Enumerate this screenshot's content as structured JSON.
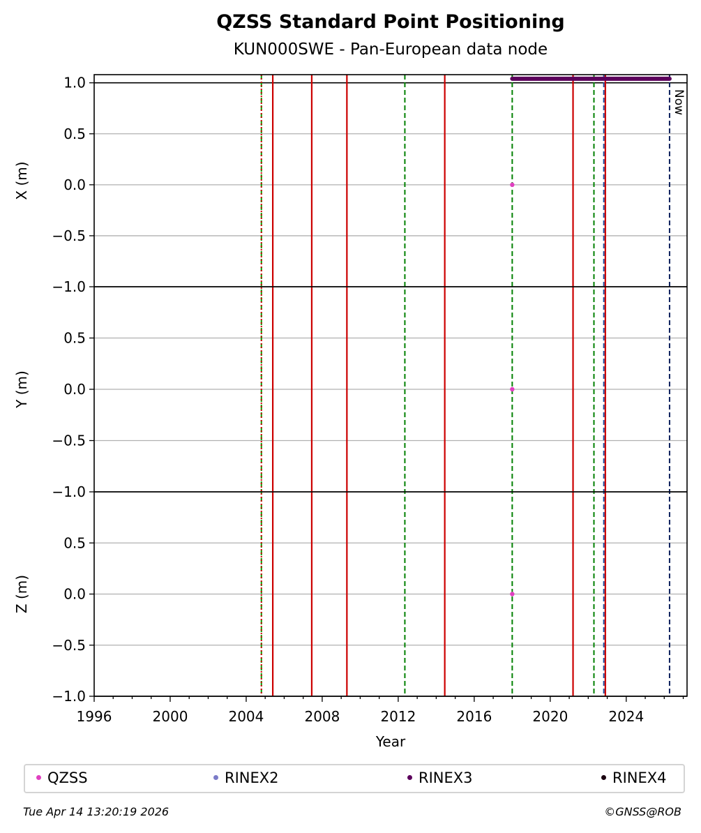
{
  "chart_data": {
    "type": "scatter",
    "title": "QZSS Standard Point Positioning",
    "subtitle": "KUN000SWE - Pan-European data node",
    "xlabel": "Year",
    "xlim": [
      1996,
      2027.2
    ],
    "xticks": [
      "1996",
      "2000",
      "2004",
      "2008",
      "2012",
      "2016",
      "2020",
      "2024"
    ],
    "grid": true,
    "panels": [
      {
        "ylabel": "X (m)",
        "ylim": [
          -1.0,
          1.08
        ],
        "yticks": [
          "1.0",
          "0.5",
          "0.0",
          "−0.5",
          "−1.0"
        ]
      },
      {
        "ylabel": "Y (m)",
        "ylim": [
          -1.0,
          1.0
        ],
        "yticks": [
          "0.5",
          "0.0",
          "−0.5",
          "−1.0"
        ]
      },
      {
        "ylabel": "Z (m)",
        "ylim": [
          -1.0,
          1.0
        ],
        "yticks": [
          "0.5",
          "0.0",
          "−0.5",
          "−1.0"
        ]
      }
    ],
    "series": [
      {
        "name": "QZSS",
        "color": "#e040c0",
        "points": [
          [
            2018.0,
            0.0
          ]
        ],
        "panels": [
          0,
          1,
          2
        ]
      }
    ],
    "data_availability": {
      "series": "RINEX3",
      "color": "#5c005c",
      "start": 2018.0,
      "end": 2026.28,
      "y": 1.04
    },
    "event_lines": [
      {
        "x": 2004.8,
        "color": "#00a000",
        "style": "dashed"
      },
      {
        "x": 2004.8,
        "color": "#cc0000",
        "style": "dotted"
      },
      {
        "x": 2005.4,
        "color": "#cc0000",
        "style": "solid"
      },
      {
        "x": 2007.45,
        "color": "#cc0000",
        "style": "solid"
      },
      {
        "x": 2009.3,
        "color": "#cc0000",
        "style": "solid"
      },
      {
        "x": 2012.35,
        "color": "#008000",
        "style": "dashed"
      },
      {
        "x": 2014.45,
        "color": "#cc0000",
        "style": "solid"
      },
      {
        "x": 2018.0,
        "color": "#008000",
        "style": "dashed"
      },
      {
        "x": 2021.2,
        "color": "#cc0000",
        "style": "solid"
      },
      {
        "x": 2022.3,
        "color": "#008000",
        "style": "dashed"
      },
      {
        "x": 2022.82,
        "color": "#1f4fa0",
        "style": "dashed"
      },
      {
        "x": 2022.9,
        "color": "#cc0000",
        "style": "solid"
      },
      {
        "x": 2026.28,
        "color": "#0a1f5c",
        "style": "dashed"
      }
    ],
    "now_line": {
      "x": 2026.28,
      "label": "Now"
    },
    "legend_position": "bottom"
  },
  "legend": [
    {
      "label": "QZSS",
      "color": "#e040c0"
    },
    {
      "label": "RINEX2",
      "color": "#7b7bc8"
    },
    {
      "label": "RINEX3",
      "color": "#5c005c"
    },
    {
      "label": "RINEX4",
      "color": "#1a0010"
    }
  ],
  "footer": {
    "timestamp": "Tue Apr 14 13:20:19 2026",
    "credit": "©GNSS@ROB"
  }
}
